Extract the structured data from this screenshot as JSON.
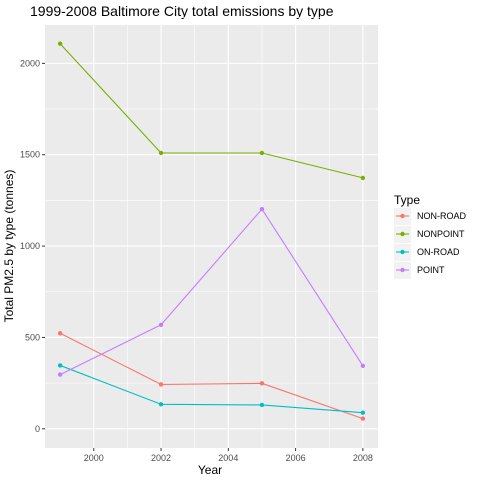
{
  "chart_data": {
    "type": "line",
    "title": "1999-2008 Baltimore City total emissions by type",
    "xlabel": "Year",
    "ylabel": "Total PM2.5 by type (tonnes)",
    "x": [
      1999,
      2002,
      2005,
      2008
    ],
    "x_ticks": [
      2000,
      2002,
      2004,
      2006,
      2008
    ],
    "y_ticks": [
      0,
      500,
      1000,
      1500,
      2000
    ],
    "xlim": [
      1998.55,
      2008.45
    ],
    "ylim": [
      -105,
      2210
    ],
    "grid": true,
    "legend": {
      "title": "Type",
      "placement": "right"
    },
    "series": [
      {
        "name": "NON-ROAD",
        "color": "#F8766D",
        "values": [
          522.94,
          242.85,
          248.93,
          55.82
        ]
      },
      {
        "name": "NONPOINT",
        "color": "#7CAE00",
        "values": [
          2107.625,
          1509.5,
          1509.5,
          1373.207
        ]
      },
      {
        "name": "ON-ROAD",
        "color": "#00BFC4",
        "values": [
          346.82,
          134.31,
          130.43,
          88.28
        ]
      },
      {
        "name": "POINT",
        "color": "#C77CFF",
        "values": [
          296.795,
          569.26,
          1202.49,
          344.975
        ]
      }
    ]
  }
}
